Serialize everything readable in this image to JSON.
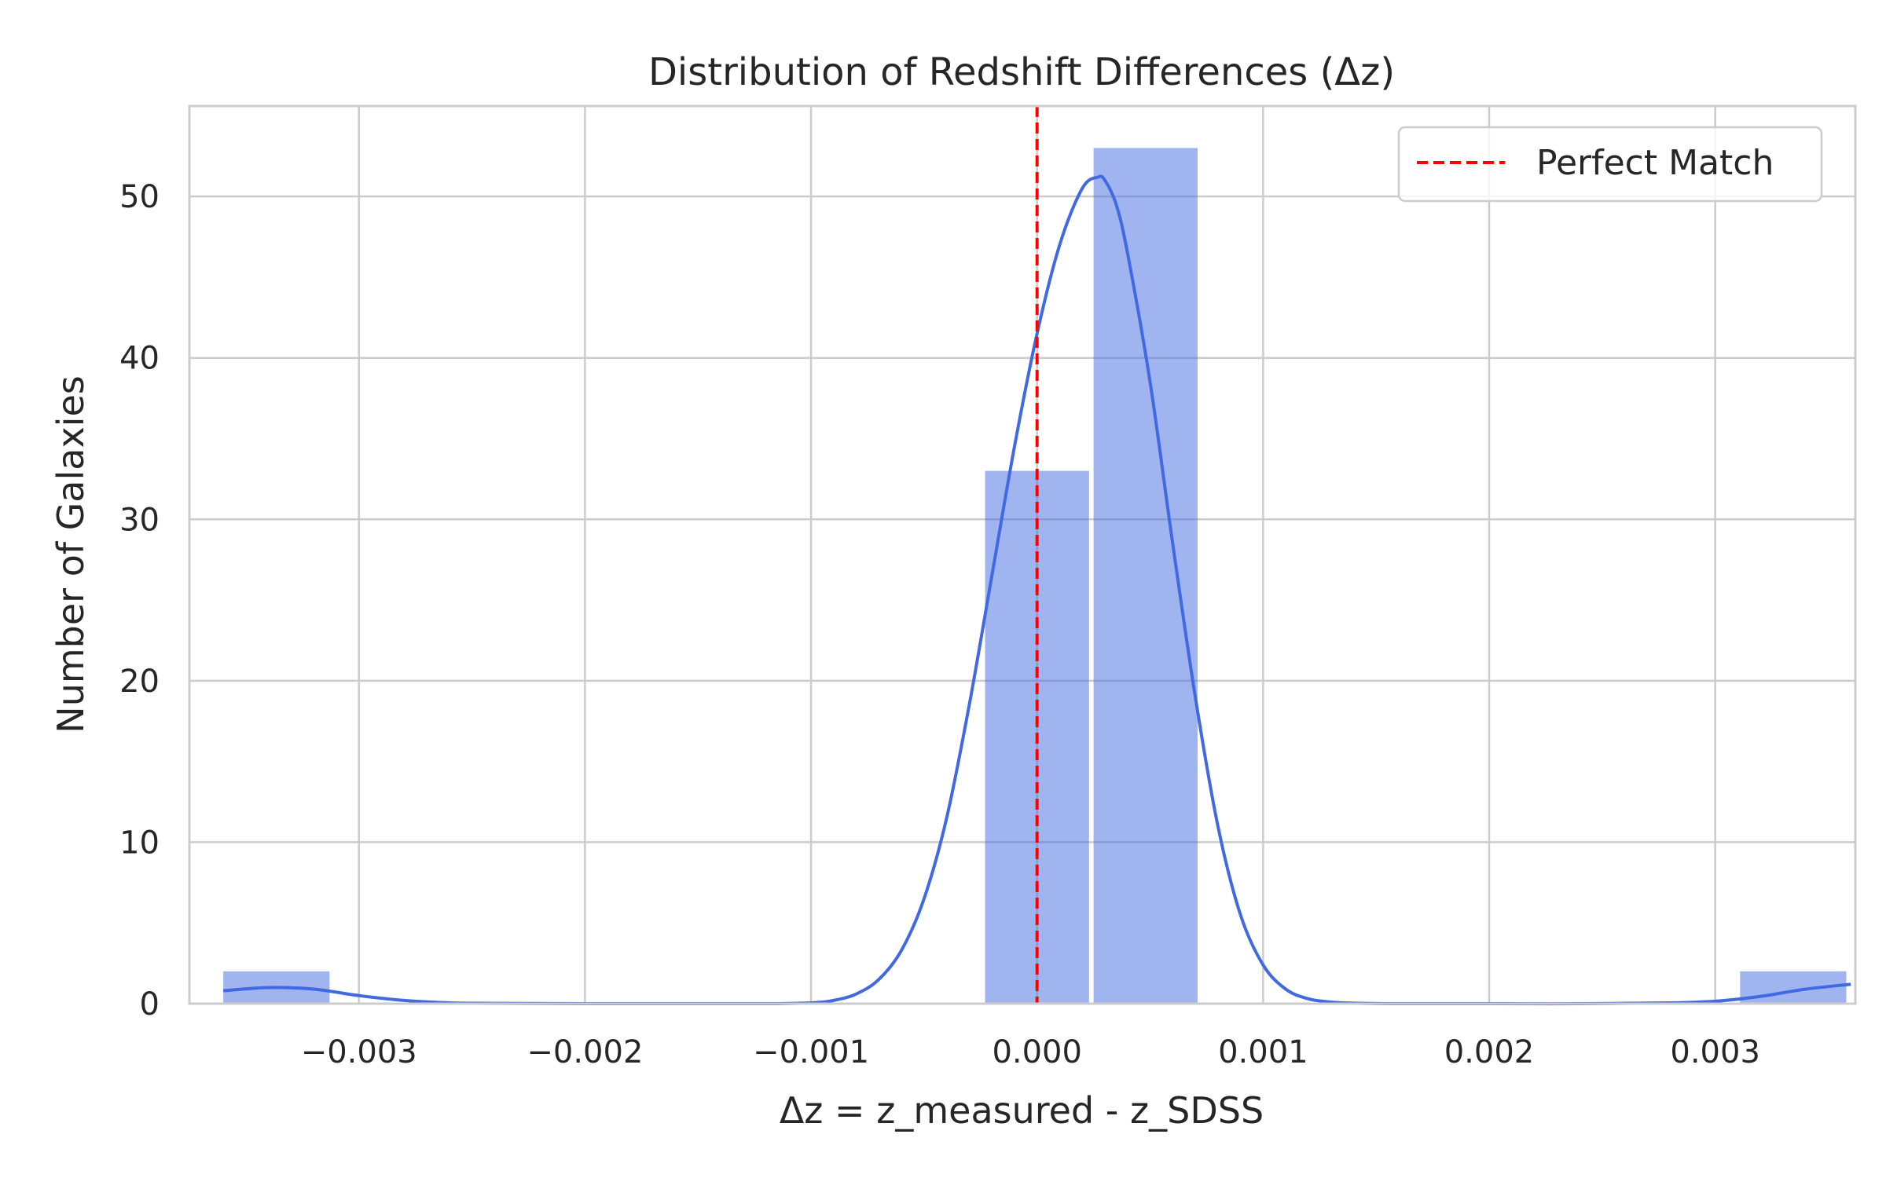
{
  "chart_data": {
    "type": "bar",
    "title": "Distribution of Redshift Differences (Δz)",
    "xlabel": "Δz = z_measured - z_SDSS",
    "ylabel": "Number of Galaxies",
    "xlim": [
      -0.00375,
      0.00362
    ],
    "ylim": [
      0,
      55.6
    ],
    "x_ticks": [
      -0.003,
      -0.002,
      -0.001,
      0.0,
      0.001,
      0.002,
      0.003
    ],
    "x_tick_labels": [
      "−0.003",
      "−0.002",
      "−0.001",
      "0.000",
      "0.001",
      "0.002",
      "0.003"
    ],
    "y_ticks": [
      0,
      10,
      20,
      30,
      40,
      50
    ],
    "y_tick_labels": [
      "0",
      "10",
      "20",
      "30",
      "40",
      "50"
    ],
    "grid": true,
    "bar_color": "#4169E1",
    "bar_opacity": 0.5,
    "bins": [
      {
        "x0": -0.0036,
        "x1": -0.00313,
        "count": 2
      },
      {
        "x0": -0.00313,
        "x1": -0.00265,
        "count": 0
      },
      {
        "x0": -0.00265,
        "x1": -0.00218,
        "count": 0
      },
      {
        "x0": -0.00218,
        "x1": -0.00171,
        "count": 0
      },
      {
        "x0": -0.00171,
        "x1": -0.00123,
        "count": 0
      },
      {
        "x0": -0.00123,
        "x1": -0.00076,
        "count": 0
      },
      {
        "x0": -0.00076,
        "x1": -0.00029,
        "count": 0
      },
      {
        "x0": -0.00023,
        "x1": 0.00023,
        "count": 33
      },
      {
        "x0": 0.00025,
        "x1": 0.00071,
        "count": 53
      },
      {
        "x0": 0.00071,
        "x1": 0.00118,
        "count": 0
      },
      {
        "x0": 0.00118,
        "x1": 0.00165,
        "count": 0
      },
      {
        "x0": 0.00165,
        "x1": 0.00212,
        "count": 0
      },
      {
        "x0": 0.00212,
        "x1": 0.0026,
        "count": 0
      },
      {
        "x0": 0.0026,
        "x1": 0.00311,
        "count": 0
      },
      {
        "x0": 0.00311,
        "x1": 0.00358,
        "count": 2
      }
    ],
    "kde": {
      "name": "KDE",
      "color": "#4169E1",
      "x": [
        -0.0036,
        -0.0034,
        -0.0032,
        -0.003,
        -0.0028,
        -0.0026,
        -0.0024,
        -0.002,
        -0.0016,
        -0.0012,
        -0.001,
        -0.0009,
        -0.0008,
        -0.0007,
        -0.0006,
        -0.0005,
        -0.0004,
        -0.0003,
        -0.0002,
        -0.0001,
        0.0,
        0.0001,
        0.0002,
        0.00027,
        0.0003,
        0.00035,
        0.0004,
        0.0005,
        0.0006,
        0.0007,
        0.0008,
        0.0009,
        0.001,
        0.0011,
        0.0012,
        0.0013,
        0.0014,
        0.0016,
        0.002,
        0.0024,
        0.0028,
        0.003,
        0.0032,
        0.0034,
        0.0036
      ],
      "y": [
        0.8,
        1.0,
        0.9,
        0.5,
        0.2,
        0.05,
        0.02,
        0.0,
        0.0,
        0.0,
        0.05,
        0.2,
        0.6,
        1.5,
        3.3,
        6.5,
        11.5,
        18.5,
        26.5,
        34.5,
        41.5,
        47.0,
        50.5,
        51.2,
        51.0,
        49.5,
        46.5,
        38.5,
        28.5,
        19.0,
        11.0,
        5.5,
        2.4,
        0.9,
        0.3,
        0.1,
        0.03,
        0.0,
        0.0,
        0.0,
        0.05,
        0.15,
        0.45,
        0.9,
        1.2
      ]
    },
    "reference_line": {
      "x": 0.0,
      "label": "Perfect Match",
      "color": "#ff0000",
      "style": "dashed"
    },
    "legend": {
      "position": "top-right",
      "entries": [
        "Perfect Match"
      ]
    }
  }
}
